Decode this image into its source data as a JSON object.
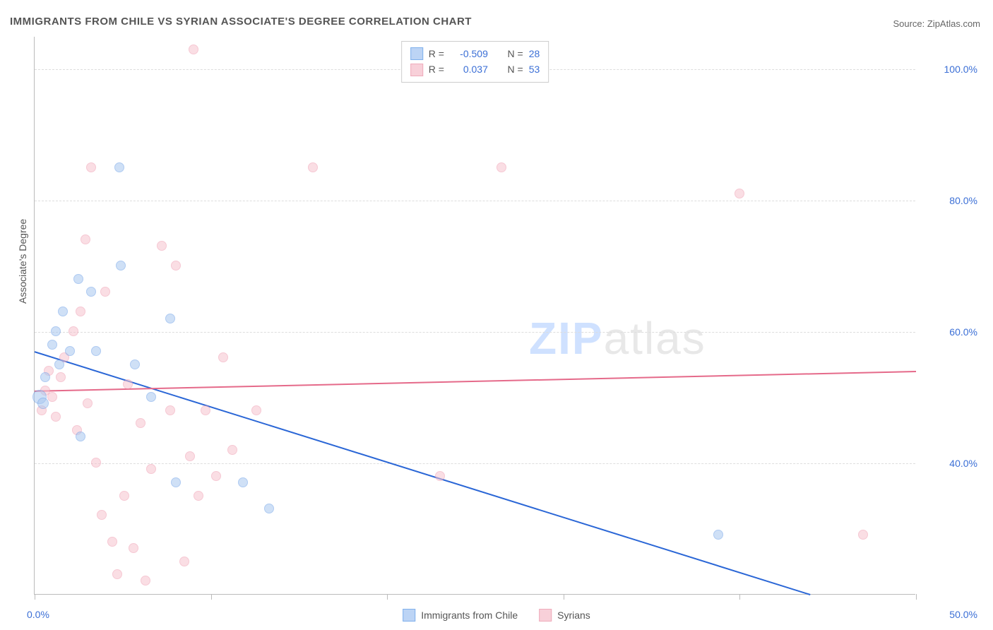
{
  "title": "IMMIGRANTS FROM CHILE VS SYRIAN ASSOCIATE'S DEGREE CORRELATION CHART",
  "source": "Source: ZipAtlas.com",
  "ylabel": "Associate's Degree",
  "watermark": {
    "zip": "ZIP",
    "atlas": "atlas"
  },
  "chart": {
    "type": "scatter",
    "xlim": [
      0,
      50
    ],
    "ylim": [
      20,
      105
    ],
    "xticks": [
      0,
      10,
      20,
      30,
      40,
      50
    ],
    "xtick_labels_visible": {
      "0": "0.0%",
      "50": "50.0%"
    },
    "yticks": [
      40,
      60,
      80,
      100
    ],
    "ytick_labels": [
      "40.0%",
      "60.0%",
      "80.0%",
      "100.0%"
    ],
    "grid_color": "#dddddd",
    "axis_color": "#bbbbbb",
    "background_color": "#ffffff",
    "point_radius": 7,
    "point_opacity": 0.55,
    "point_border_width": 1.5
  },
  "series": [
    {
      "id": "chile",
      "label": "Immigrants from Chile",
      "color_fill": "#a9c7f0",
      "color_stroke": "#6ca0e8",
      "swatch_fill": "#bcd4f5",
      "swatch_stroke": "#7fb0ec",
      "stats": {
        "R": "-0.509",
        "N": "28"
      },
      "trend": {
        "x1": 0,
        "y1": 57,
        "x2": 44,
        "y2": 20,
        "color": "#2a66d6",
        "width": 2
      },
      "points": [
        {
          "x": 0.3,
          "y": 50,
          "r": 10
        },
        {
          "x": 0.5,
          "y": 49,
          "r": 8
        },
        {
          "x": 0.6,
          "y": 53,
          "r": 7
        },
        {
          "x": 1.0,
          "y": 58,
          "r": 7
        },
        {
          "x": 1.2,
          "y": 60,
          "r": 7
        },
        {
          "x": 1.4,
          "y": 55,
          "r": 7
        },
        {
          "x": 1.6,
          "y": 63,
          "r": 7
        },
        {
          "x": 2.0,
          "y": 57,
          "r": 7
        },
        {
          "x": 2.5,
          "y": 68,
          "r": 7
        },
        {
          "x": 2.6,
          "y": 44,
          "r": 7
        },
        {
          "x": 3.2,
          "y": 66,
          "r": 7
        },
        {
          "x": 3.5,
          "y": 57,
          "r": 7
        },
        {
          "x": 4.8,
          "y": 85,
          "r": 7
        },
        {
          "x": 4.9,
          "y": 70,
          "r": 7
        },
        {
          "x": 5.7,
          "y": 55,
          "r": 7
        },
        {
          "x": 6.6,
          "y": 50,
          "r": 7
        },
        {
          "x": 7.7,
          "y": 62,
          "r": 7
        },
        {
          "x": 8.0,
          "y": 37,
          "r": 7
        },
        {
          "x": 11.8,
          "y": 37,
          "r": 7
        },
        {
          "x": 13.3,
          "y": 33,
          "r": 7
        },
        {
          "x": 38.8,
          "y": 29,
          "r": 7
        }
      ]
    },
    {
      "id": "syrians",
      "label": "Syrians",
      "color_fill": "#f6c4cf",
      "color_stroke": "#ef9cb0",
      "swatch_fill": "#f8d0d9",
      "swatch_stroke": "#efabbb",
      "stats": {
        "R": "0.037",
        "N": "53"
      },
      "trend": {
        "x1": 0,
        "y1": 51,
        "x2": 50,
        "y2": 54,
        "color": "#e56a8a",
        "width": 2
      },
      "points": [
        {
          "x": 0.4,
          "y": 48
        },
        {
          "x": 0.6,
          "y": 51
        },
        {
          "x": 0.8,
          "y": 54
        },
        {
          "x": 1.0,
          "y": 50
        },
        {
          "x": 1.2,
          "y": 47
        },
        {
          "x": 1.5,
          "y": 53
        },
        {
          "x": 1.7,
          "y": 56
        },
        {
          "x": 2.2,
          "y": 60
        },
        {
          "x": 2.4,
          "y": 45
        },
        {
          "x": 2.6,
          "y": 63
        },
        {
          "x": 2.9,
          "y": 74
        },
        {
          "x": 3.0,
          "y": 49
        },
        {
          "x": 3.2,
          "y": 85
        },
        {
          "x": 3.5,
          "y": 40
        },
        {
          "x": 3.8,
          "y": 32
        },
        {
          "x": 4.0,
          "y": 66
        },
        {
          "x": 4.4,
          "y": 28
        },
        {
          "x": 4.7,
          "y": 23
        },
        {
          "x": 5.1,
          "y": 35
        },
        {
          "x": 5.3,
          "y": 52
        },
        {
          "x": 5.6,
          "y": 27
        },
        {
          "x": 6.0,
          "y": 46
        },
        {
          "x": 6.3,
          "y": 22
        },
        {
          "x": 6.6,
          "y": 39
        },
        {
          "x": 7.2,
          "y": 73
        },
        {
          "x": 7.7,
          "y": 48
        },
        {
          "x": 8.0,
          "y": 70
        },
        {
          "x": 8.5,
          "y": 25
        },
        {
          "x": 8.8,
          "y": 41
        },
        {
          "x": 9.0,
          "y": 103
        },
        {
          "x": 9.3,
          "y": 35
        },
        {
          "x": 9.7,
          "y": 48
        },
        {
          "x": 10.3,
          "y": 38
        },
        {
          "x": 10.7,
          "y": 56
        },
        {
          "x": 11.2,
          "y": 42
        },
        {
          "x": 12.6,
          "y": 48
        },
        {
          "x": 15.8,
          "y": 85
        },
        {
          "x": 23.0,
          "y": 38
        },
        {
          "x": 26.5,
          "y": 85
        },
        {
          "x": 40.0,
          "y": 81
        },
        {
          "x": 47.0,
          "y": 29
        }
      ]
    }
  ],
  "legend_top": {
    "r_label": "R =",
    "n_label": "N ="
  },
  "label_fontsize": 14,
  "title_fontsize": 15,
  "tick_color": "#3b6fd6"
}
